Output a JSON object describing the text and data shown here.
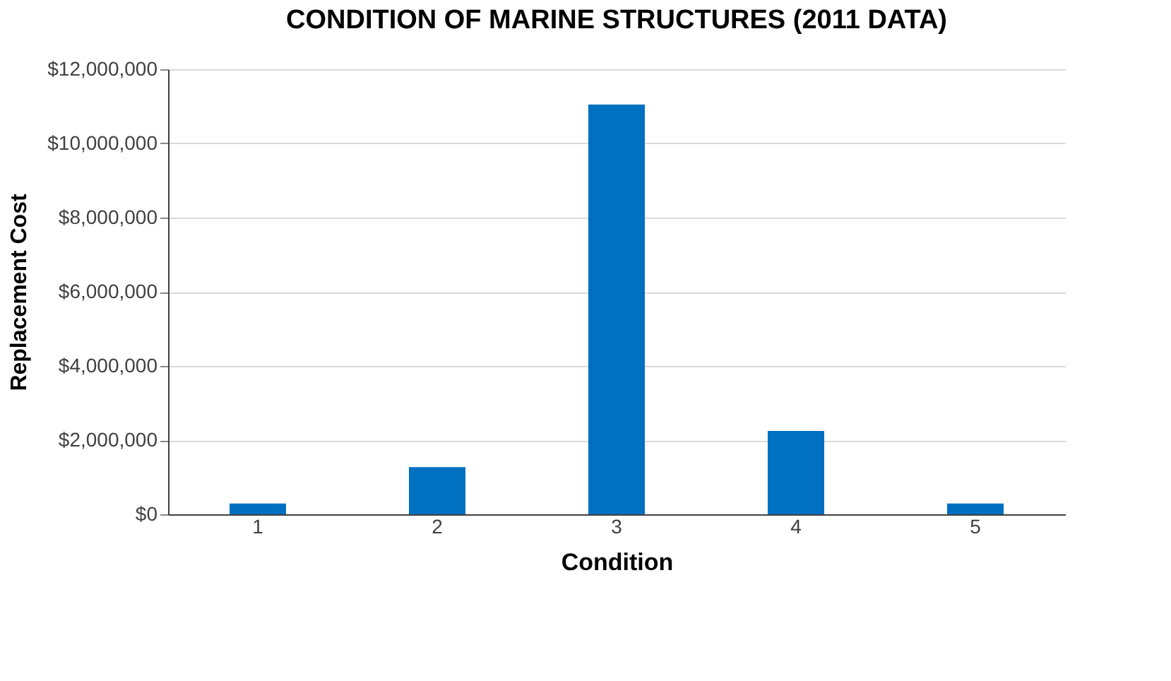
{
  "chart_data": {
    "type": "bar",
    "title": "CONDITION OF MARINE STRUCTURES (2011 DATA)",
    "xlabel": "Condition",
    "ylabel": "Replacement Cost",
    "categories": [
      "1",
      "2",
      "3",
      "4",
      "5"
    ],
    "values": [
      290000,
      1270000,
      11050000,
      2250000,
      290000
    ],
    "color": "#0070c0",
    "ylim": [
      0,
      12000000
    ],
    "yticks": [
      {
        "value": 0,
        "label": "$0"
      },
      {
        "value": 2000000,
        "label": "$2,000,000"
      },
      {
        "value": 4000000,
        "label": "$4,000,000"
      },
      {
        "value": 6000000,
        "label": "$6,000,000"
      },
      {
        "value": 8000000,
        "label": "$8,000,000"
      },
      {
        "value": 10000000,
        "label": "$10,000,000"
      },
      {
        "value": 12000000,
        "label": "$12,000,000"
      }
    ],
    "grid": "y"
  }
}
